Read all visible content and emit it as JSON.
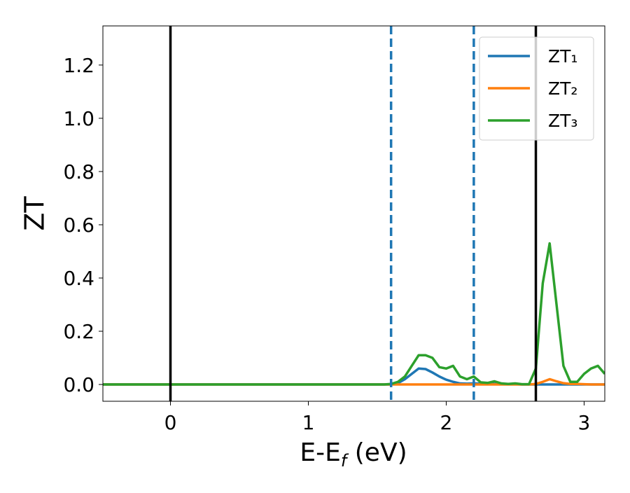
{
  "chart_data": {
    "type": "line",
    "ylabel": "ZT",
    "xlabel": [
      "E-E",
      "f",
      " (eV)"
    ],
    "xlim": [
      -0.49,
      3.15
    ],
    "ylim": [
      -0.063,
      1.347
    ],
    "xticks": [
      0,
      1,
      2,
      3
    ],
    "yticks": [
      {
        "value": 0,
        "label": "0.0"
      },
      0.2,
      0.4,
      0.6,
      0.8,
      {
        "value": 1,
        "label": "1.0"
      },
      1.2
    ],
    "grid": false,
    "legend": "upper right",
    "vlines": [
      {
        "x": 0,
        "color": "#000000",
        "style": "solid"
      },
      {
        "x": 1.6,
        "color": "#1f77b4",
        "style": "dashed"
      },
      {
        "x": 2.2,
        "color": "#1f77b4",
        "style": "dashed"
      },
      {
        "x": 2.65,
        "color": "#000000",
        "style": "solid"
      }
    ],
    "x": [
      -0.49,
      0,
      0.5,
      1,
      1.5,
      1.55,
      1.6,
      1.65,
      1.7,
      1.75,
      1.8,
      1.85,
      1.9,
      1.95,
      2.0,
      2.05,
      2.1,
      2.15,
      2.2,
      2.25,
      2.3,
      2.35,
      2.4,
      2.45,
      2.5,
      2.55,
      2.6,
      2.65,
      2.7,
      2.75,
      2.8,
      2.85,
      2.9,
      2.95,
      3.0,
      3.05,
      3.1,
      3.15
    ],
    "series": [
      {
        "name": "ZT₁",
        "color": "#1f77b4",
        "values": [
          0,
          0,
          0,
          0,
          0,
          0,
          0,
          0.005,
          0.02,
          0.04,
          0.06,
          0.058,
          0.045,
          0.03,
          0.018,
          0.01,
          0.004,
          0.003,
          0.004,
          0.003,
          0.003,
          0.002,
          0.002,
          0.001,
          0.001,
          0,
          0,
          0,
          0,
          0,
          0,
          0,
          0,
          0,
          0,
          0,
          0,
          0
        ]
      },
      {
        "name": "ZT₂",
        "color": "#ff7f0e",
        "values": [
          0,
          0,
          0,
          0,
          0,
          0,
          0,
          0,
          0,
          0,
          0,
          0,
          0,
          0,
          0,
          0,
          0,
          0,
          0,
          0,
          0,
          0,
          0,
          0,
          0,
          0,
          0,
          0.002,
          0.01,
          0.02,
          0.012,
          0.005,
          0.002,
          0.002,
          0.001,
          0,
          0,
          0
        ]
      },
      {
        "name": "ZT₃",
        "color": "#2ca02c",
        "values": [
          0,
          0,
          0,
          0,
          0,
          0,
          0.002,
          0.01,
          0.03,
          0.07,
          0.11,
          0.11,
          0.1,
          0.065,
          0.06,
          0.07,
          0.03,
          0.02,
          0.03,
          0.008,
          0.006,
          0.012,
          0.004,
          0.002,
          0.004,
          0.001,
          0.001,
          0.06,
          0.38,
          0.53,
          0.3,
          0.07,
          0.01,
          0.01,
          0.04,
          0.06,
          0.07,
          0.04
        ]
      }
    ]
  }
}
